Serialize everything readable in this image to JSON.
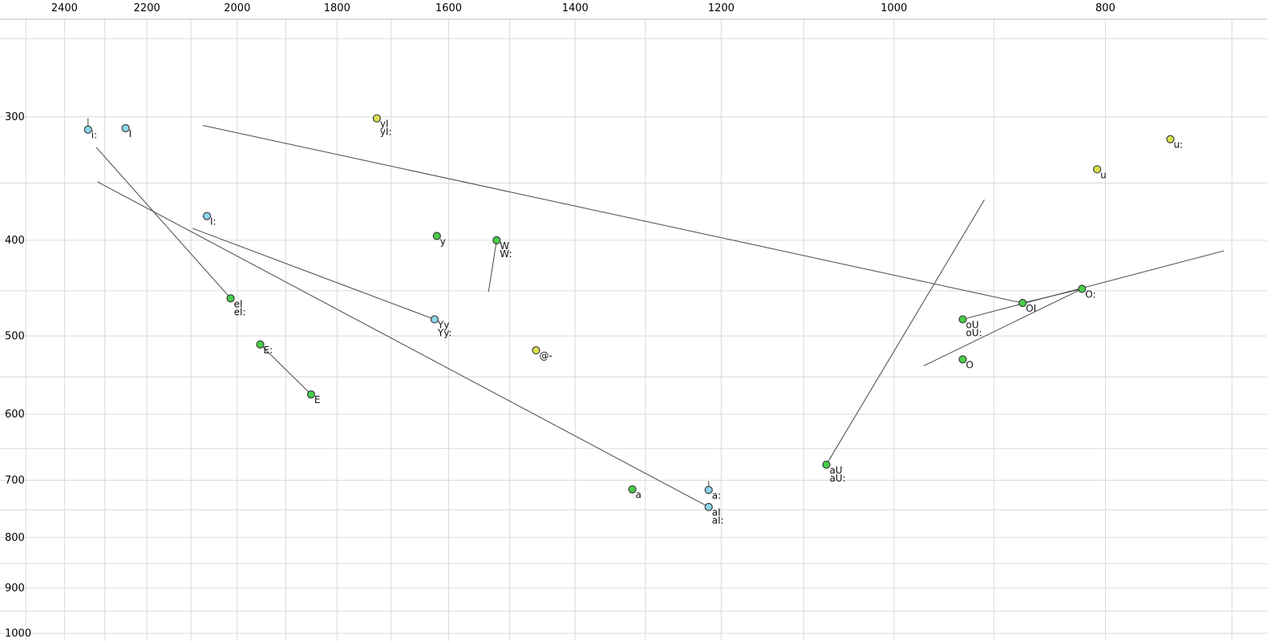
{
  "chart_data": {
    "type": "scatter",
    "title": "",
    "x_axis": {
      "position": "top",
      "scale": "log",
      "reversed": true,
      "tick_labels": [
        2400,
        2200,
        2000,
        1800,
        1600,
        1400,
        1200,
        1000,
        800
      ],
      "grid_min": 700,
      "grid_max": 2500,
      "grid_step": 100,
      "visible_range": [
        2480,
        675
      ]
    },
    "y_axis": {
      "position": "left",
      "scale": "log",
      "increases_downward": true,
      "tick_labels": [
        300,
        400,
        500,
        600,
        700,
        800,
        900,
        1000
      ],
      "grid_min": 250,
      "grid_max": 1000,
      "grid_step": 50,
      "visible_range": [
        240,
        1055
      ]
    },
    "points": [
      {
        "label": "i:",
        "lines": [
          "i:"
        ],
        "f2": 2341,
        "f1": 309,
        "color": "cyan"
      },
      {
        "label": "I",
        "lines": [
          "I"
        ],
        "f2": 2250,
        "f1": 308,
        "color": "cyan"
      },
      {
        "label": "I:",
        "lines": [
          "I:"
        ],
        "f2": 2065,
        "f1": 378,
        "color": "cyan"
      },
      {
        "label": "yI",
        "lines": [
          "yI",
          "yI:"
        ],
        "f2": 1726,
        "f1": 301,
        "color": "yellow"
      },
      {
        "label": "y",
        "lines": [
          "y"
        ],
        "f2": 1620,
        "f1": 396,
        "color": "green"
      },
      {
        "label": "W",
        "lines": [
          "W",
          "W:"
        ],
        "f2": 1521,
        "f1": 400,
        "color": "green"
      },
      {
        "label": "u:",
        "lines": [
          "u:"
        ],
        "f2": 747,
        "f1": 316,
        "color": "yellow"
      },
      {
        "label": "u",
        "lines": [
          "u"
        ],
        "f2": 807,
        "f1": 339,
        "color": "yellow"
      },
      {
        "label": "eI",
        "lines": [
          "eI",
          "eI:"
        ],
        "f2": 2014,
        "f1": 458,
        "color": "green"
      },
      {
        "label": "Yy",
        "lines": [
          "Yy",
          "Yy:"
        ],
        "f2": 1624,
        "f1": 481,
        "color": "cyan"
      },
      {
        "label": "E:",
        "lines": [
          "E:"
        ],
        "f2": 1952,
        "f1": 510,
        "color": "green"
      },
      {
        "label": "E",
        "lines": [
          "E"
        ],
        "f2": 1850,
        "f1": 573,
        "color": "green"
      },
      {
        "label": "@-",
        "lines": [
          "@-"
        ],
        "f2": 1459,
        "f1": 517,
        "color": "yellow"
      },
      {
        "label": "O:",
        "lines": [
          "O:"
        ],
        "f2": 820,
        "f1": 448,
        "color": "green"
      },
      {
        "label": "OI",
        "lines": [
          "OI"
        ],
        "f2": 873,
        "f1": 463,
        "color": "green"
      },
      {
        "label": "oU",
        "lines": [
          "oU",
          "oU:"
        ],
        "f2": 930,
        "f1": 481,
        "color": "green"
      },
      {
        "label": "O",
        "lines": [
          "O"
        ],
        "f2": 930,
        "f1": 528,
        "color": "green"
      },
      {
        "label": "aU",
        "lines": [
          "aU",
          "aU:"
        ],
        "f2": 1074,
        "f1": 675,
        "color": "green"
      },
      {
        "label": "a",
        "lines": [
          "a"
        ],
        "f2": 1318,
        "f1": 715,
        "color": "green"
      },
      {
        "label": "a:",
        "lines": [
          "a:"
        ],
        "f2": 1216,
        "f1": 716,
        "color": "cyan"
      },
      {
        "label": "aI",
        "lines": [
          "aI",
          "aI:"
        ],
        "f2": 1216,
        "f1": 745,
        "color": "cyan"
      }
    ],
    "trajectories": [
      {
        "name": "OI-trajectory",
        "from": [
          2074,
          306
        ],
        "to": [
          873,
          463
        ]
      },
      {
        "name": "eI-trajectory",
        "from": [
          2321,
          322
        ],
        "to": [
          2014,
          458
        ]
      },
      {
        "name": "aI-trajectory",
        "from": [
          2318,
          349
        ],
        "to": [
          1216,
          745
        ]
      },
      {
        "name": "Yy-trajectory",
        "from": [
          2097,
          389
        ],
        "to": [
          1624,
          481
        ]
      },
      {
        "name": "E-long-to-E",
        "from": [
          1952,
          510
        ],
        "to": [
          1850,
          573
        ]
      },
      {
        "name": "W-trajectory",
        "from": [
          1521,
          400
        ],
        "to": [
          1534,
          451
        ]
      },
      {
        "name": "aU-trajectory",
        "from": [
          1074,
          675
        ],
        "to": [
          909,
          364
        ]
      },
      {
        "name": "oU-trajectory",
        "from": [
          930,
          481
        ],
        "to": [
          706,
          410
        ]
      },
      {
        "name": "O-long-trajectory",
        "from": [
          969,
          536
        ],
        "to": [
          820,
          448
        ]
      },
      {
        "name": "OI-to-O-long",
        "from": [
          873,
          463
        ],
        "to": [
          820,
          448
        ]
      }
    ],
    "tick_marks": [
      {
        "f2": 2341,
        "f1_from": 301,
        "f1_to": 307
      },
      {
        "f2": 1216,
        "f1_from": 701,
        "f1_to": 712
      }
    ],
    "colors": {
      "cyan": "#8dd6ec",
      "green": "#46cf4a",
      "yellow": "#dbe24c",
      "point_stroke": "#3c3c3c",
      "grid": "#dadada",
      "frame": "#bdbdbd",
      "line": "#474747",
      "text": "#000000"
    }
  }
}
